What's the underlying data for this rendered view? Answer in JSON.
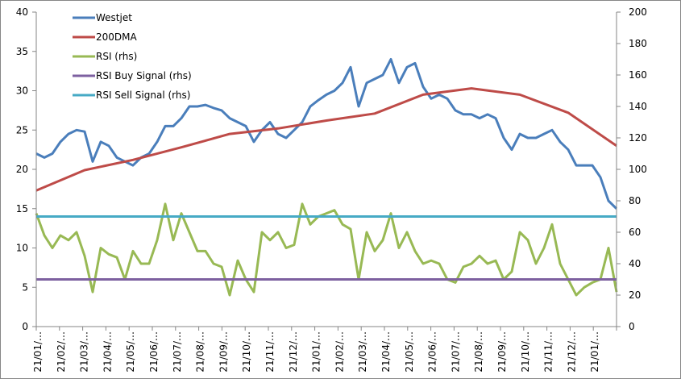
{
  "chart_data": {
    "type": "line",
    "title": "",
    "x_tick_labels": [
      "21/01/…",
      "21/02/…",
      "21/03/…",
      "21/04/…",
      "21/05/…",
      "21/06/…",
      "21/07/…",
      "21/08/…",
      "21/09/…",
      "21/10/…",
      "21/11/…",
      "21/12/…",
      "21/01/…",
      "21/02/…",
      "21/03/…",
      "21/04/…",
      "21/05/…",
      "21/06/…",
      "21/07/…",
      "21/08/…",
      "21/09/…",
      "21/10/…",
      "21/11/…",
      "21/12/…",
      "21/01/…"
    ],
    "y_left": {
      "min": 0,
      "max": 40,
      "step": 5,
      "ticks": [
        "0",
        "5",
        "10",
        "15",
        "20",
        "25",
        "30",
        "35",
        "40"
      ]
    },
    "y_right": {
      "min": 0,
      "max": 200,
      "step": 20,
      "ticks": [
        "0",
        "20",
        "40",
        "60",
        "80",
        "100",
        "120",
        "140",
        "160",
        "180",
        "200"
      ]
    },
    "legend_position": "top-left",
    "series": [
      {
        "name": "Westjet",
        "axis": "left",
        "color": "#4a7ebb",
        "values": [
          22,
          21.5,
          22,
          23.5,
          24.5,
          25,
          24.8,
          21,
          23.5,
          23,
          21.5,
          21,
          20.5,
          21.5,
          22,
          23.5,
          25.5,
          25.5,
          26.5,
          28,
          28,
          28.2,
          27.8,
          27.5,
          26.5,
          26,
          25.5,
          23.5,
          25,
          26,
          24.5,
          24,
          25,
          26,
          28,
          28.8,
          29.5,
          30,
          31,
          33,
          28,
          31,
          31.5,
          32,
          34,
          31,
          33,
          33.5,
          30.5,
          29,
          29.5,
          29,
          27.5,
          27,
          27,
          26.5,
          27,
          26.5,
          24,
          22.5,
          24.5,
          24,
          24,
          24.5,
          25,
          23.5,
          22.5,
          20.5,
          20.5,
          20.5,
          19,
          16,
          15
        ]
      },
      {
        "name": "200DMA",
        "axis": "left",
        "color": "#be4b48",
        "values": [
          17.3,
          19.9,
          21.2,
          22.8,
          24.5,
          25.2,
          26.2,
          27.1,
          29.5,
          30.3,
          29.5,
          27.2,
          23
        ]
      },
      {
        "name": "RSI (rhs)",
        "axis": "right",
        "color": "#98b954",
        "values": [
          72,
          58,
          50,
          58,
          55,
          60,
          45,
          22,
          50,
          46,
          44,
          30,
          48,
          40,
          40,
          55,
          78,
          55,
          72,
          60,
          48,
          48,
          40,
          38,
          20,
          42,
          30,
          22,
          60,
          55,
          60,
          50,
          52,
          78,
          65,
          70,
          72,
          74,
          65,
          62,
          30,
          60,
          48,
          55,
          72,
          50,
          60,
          48,
          40,
          42,
          40,
          30,
          28,
          38,
          40,
          45,
          40,
          42,
          30,
          35,
          60,
          55,
          40,
          50,
          65,
          40,
          30,
          20,
          25,
          28,
          30,
          50,
          22
        ]
      },
      {
        "name": "RSI Buy Signal (rhs)",
        "axis": "right",
        "color": "#7d60a0",
        "values": [
          30,
          30
        ]
      },
      {
        "name": "RSI Sell Signal (rhs)",
        "axis": "right",
        "color": "#46aac5",
        "values": [
          70,
          70
        ]
      }
    ]
  }
}
